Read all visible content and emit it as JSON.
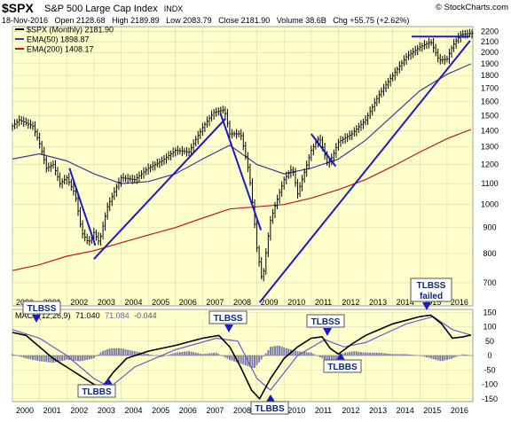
{
  "header": {
    "symbol": "$SPX",
    "name": "S&P 500 Large Cap Index",
    "exchange": "INDX",
    "watermark": "© StockCharts.com",
    "quote": "18-Nov-2016   Open 2128.68   High 2189.89   Low 2083.79   Close 2181.90   Volume 38.6B   Chg +55.75 (+2.62%)"
  },
  "colors": {
    "panel_bg": "#ffffcc",
    "price": "#000000",
    "ema50": "#3b3b99",
    "ema200": "#c0161c",
    "trendline": "#1a1ac8",
    "macd": "#000000",
    "signal": "#6a5acd",
    "histogram": "#7b7bab",
    "callout_fill": "#ffffff",
    "callout_text": "#0a2a7a"
  },
  "legend": {
    "price": "$SPX (Monthly) 2181.90",
    "ema50": "EMA(50) 1898.87",
    "ema200": "EMA(200) 1408.17"
  },
  "macd_legend": {
    "label": "MACD(12,26,9)",
    "macd": "71.040",
    "signal": "71.084",
    "hist": "-0.044"
  },
  "callouts": [
    {
      "text": "TLBSS",
      "text2": ""
    },
    {
      "text": "TLBBS",
      "text2": ""
    },
    {
      "text": "TLBSS",
      "text2": ""
    },
    {
      "text": "TLBBS",
      "text2": ""
    },
    {
      "text": "TLBSS",
      "text2": ""
    },
    {
      "text": "TLBBS",
      "text2": ""
    },
    {
      "text": "TLBSS",
      "text2": "failed"
    }
  ],
  "chart_data": [
    {
      "type": "line",
      "title": "$SPX S&P 500 Large Cap Index INDX",
      "scale": "log",
      "x_range": [
        2000.0,
        2016.95
      ],
      "xtick_labels": [
        "2000",
        "2001",
        "2002",
        "2003",
        "2004",
        "2005",
        "2006",
        "2007",
        "2008",
        "2009",
        "2010",
        "2011",
        "2012",
        "2013",
        "2014",
        "2015",
        "2016"
      ],
      "ytick_labels": [
        "700",
        "800",
        "900",
        "1000",
        "1100",
        "1200",
        "1300",
        "1400",
        "1500",
        "1600",
        "1700",
        "1800",
        "1900",
        "2000",
        "2100",
        "2200"
      ],
      "ylim": [
        630,
        2250
      ],
      "series": [
        {
          "name": "$SPX (Monthly)",
          "x": [
            2000.0,
            2000.25,
            2000.5,
            2000.75,
            2001.0,
            2001.25,
            2001.5,
            2001.75,
            2002.0,
            2002.3,
            2002.55,
            2002.8,
            2003.0,
            2003.2,
            2003.5,
            2004.0,
            2004.5,
            2005.0,
            2005.5,
            2006.0,
            2006.5,
            2007.0,
            2007.4,
            2007.8,
            2008.0,
            2008.4,
            2008.7,
            2009.0,
            2009.2,
            2009.5,
            2010.0,
            2010.3,
            2010.5,
            2010.8,
            2011.0,
            2011.3,
            2011.6,
            2011.8,
            2012.0,
            2012.5,
            2013.0,
            2013.5,
            2014.0,
            2014.5,
            2015.0,
            2015.4,
            2015.7,
            2016.0,
            2016.2,
            2016.5,
            2016.88
          ],
          "values": [
            1430,
            1470,
            1450,
            1430,
            1320,
            1180,
            1200,
            1100,
            1130,
            1050,
            880,
            840,
            880,
            840,
            990,
            1130,
            1120,
            1180,
            1220,
            1280,
            1270,
            1420,
            1520,
            1540,
            1380,
            1380,
            1160,
            820,
            700,
            930,
            1120,
            1180,
            1050,
            1180,
            1280,
            1360,
            1200,
            1250,
            1330,
            1380,
            1470,
            1650,
            1800,
            1960,
            2050,
            2100,
            1930,
            1940,
            2060,
            2170,
            2181.9
          ]
        },
        {
          "name": "EMA(50)",
          "x": [
            2000.0,
            2001.0,
            2002.0,
            2003.0,
            2004.0,
            2005.0,
            2006.0,
            2007.0,
            2008.0,
            2009.0,
            2010.0,
            2011.0,
            2012.0,
            2013.0,
            2014.0,
            2015.0,
            2016.0,
            2016.88
          ],
          "values": [
            1230,
            1260,
            1220,
            1150,
            1100,
            1110,
            1150,
            1230,
            1310,
            1200,
            1150,
            1180,
            1230,
            1340,
            1500,
            1680,
            1810,
            1898.87
          ]
        },
        {
          "name": "EMA(200)",
          "x": [
            2000.0,
            2001.0,
            2002.0,
            2003.0,
            2004.0,
            2005.0,
            2006.0,
            2007.0,
            2008.0,
            2009.0,
            2010.0,
            2011.0,
            2012.0,
            2013.0,
            2014.0,
            2015.0,
            2016.0,
            2016.88
          ],
          "values": [
            740,
            760,
            790,
            810,
            840,
            870,
            900,
            940,
            980,
            990,
            1000,
            1030,
            1070,
            1120,
            1190,
            1270,
            1350,
            1408.17
          ]
        }
      ],
      "trendlines": [
        {
          "x": [
            2002.1,
            2003.05
          ],
          "values": [
            1180,
            830
          ]
        },
        {
          "x": [
            2003.0,
            2007.85
          ],
          "values": [
            780,
            1480
          ]
        },
        {
          "x": [
            2007.65,
            2009.15
          ],
          "values": [
            1520,
            890
          ]
        },
        {
          "x": [
            2009.1,
            2016.85
          ],
          "values": [
            640,
            2110
          ]
        },
        {
          "x": [
            2011.0,
            2011.9
          ],
          "values": [
            1380,
            1190
          ]
        },
        {
          "x": [
            2014.7,
            2016.85
          ],
          "values": [
            2150,
            2150
          ]
        }
      ],
      "annotations": [
        "$SPX (Monthly) 2181.90",
        "EMA(50) 1898.87",
        "EMA(200) 1408.17"
      ],
      "grid": true,
      "legend_position": "top-left"
    },
    {
      "type": "line",
      "title": "MACD(12,26,9)",
      "x_range": [
        2000.0,
        2016.95
      ],
      "ylim": [
        -160,
        160
      ],
      "ytick_labels": [
        "150",
        "100",
        "50",
        "0",
        "-50",
        "-100",
        "-150"
      ],
      "series": [
        {
          "name": "MACD",
          "x": [
            2000.0,
            2000.5,
            2001.0,
            2001.5,
            2002.0,
            2002.5,
            2003.0,
            2003.3,
            2003.7,
            2004.2,
            2005.0,
            2006.0,
            2007.0,
            2007.6,
            2008.0,
            2008.4,
            2008.8,
            2009.1,
            2009.5,
            2010.0,
            2010.5,
            2011.0,
            2011.4,
            2011.7,
            2012.0,
            2012.5,
            2013.0,
            2014.0,
            2015.0,
            2015.4,
            2015.8,
            2016.2,
            2016.6,
            2016.88
          ],
          "values": [
            80,
            70,
            30,
            -10,
            -40,
            -70,
            -100,
            -110,
            -60,
            -10,
            15,
            35,
            60,
            70,
            30,
            -40,
            -120,
            -150,
            -80,
            -10,
            30,
            60,
            65,
            25,
            5,
            40,
            70,
            110,
            135,
            140,
            110,
            60,
            65,
            71.04
          ]
        },
        {
          "name": "Signal",
          "x": [
            2000.0,
            2001.0,
            2002.0,
            2003.0,
            2003.6,
            2004.5,
            2006.0,
            2007.5,
            2008.3,
            2009.0,
            2009.5,
            2010.5,
            2011.5,
            2012.2,
            2013.0,
            2014.5,
            2015.5,
            2016.2,
            2016.88
          ],
          "values": [
            90,
            60,
            0,
            -80,
            -110,
            -40,
            20,
            60,
            50,
            -80,
            -120,
            0,
            55,
            30,
            45,
            110,
            135,
            90,
            71.08
          ]
        },
        {
          "name": "Histogram",
          "x": [
            2000.0,
            2000.5,
            2001.0,
            2001.5,
            2002.0,
            2002.5,
            2003.0,
            2003.3,
            2003.6,
            2004.0,
            2004.5,
            2005.0,
            2005.5,
            2006.0,
            2006.5,
            2007.0,
            2007.5,
            2008.0,
            2008.3,
            2008.6,
            2008.9,
            2009.2,
            2009.5,
            2009.8,
            2010.1,
            2010.5,
            2011.0,
            2011.3,
            2011.6,
            2011.9,
            2012.2,
            2012.6,
            2013.0,
            2013.5,
            2014.0,
            2014.5,
            2015.0,
            2015.4,
            2015.8,
            2016.2,
            2016.6,
            2016.88
          ],
          "values": [
            5,
            -10,
            -20,
            -25,
            -15,
            -20,
            -10,
            15,
            25,
            25,
            15,
            5,
            -5,
            10,
            15,
            5,
            10,
            -15,
            -25,
            -35,
            -45,
            -10,
            30,
            35,
            25,
            15,
            10,
            -5,
            -20,
            -20,
            10,
            15,
            10,
            10,
            5,
            5,
            0,
            -10,
            -20,
            -10,
            5,
            0
          ]
        }
      ],
      "xtick_labels": [
        "2000",
        "2001",
        "2002",
        "2003",
        "2004",
        "2005",
        "2006",
        "2007",
        "2008",
        "2009",
        "2010",
        "2011",
        "2012",
        "2013",
        "2014",
        "2015",
        "2016"
      ],
      "annotations": [
        "TLBSS",
        "TLBBS",
        "TLBSS",
        "TLBBS",
        "TLBSS",
        "TLBBS",
        "TLBSS failed"
      ],
      "grid": true
    }
  ]
}
